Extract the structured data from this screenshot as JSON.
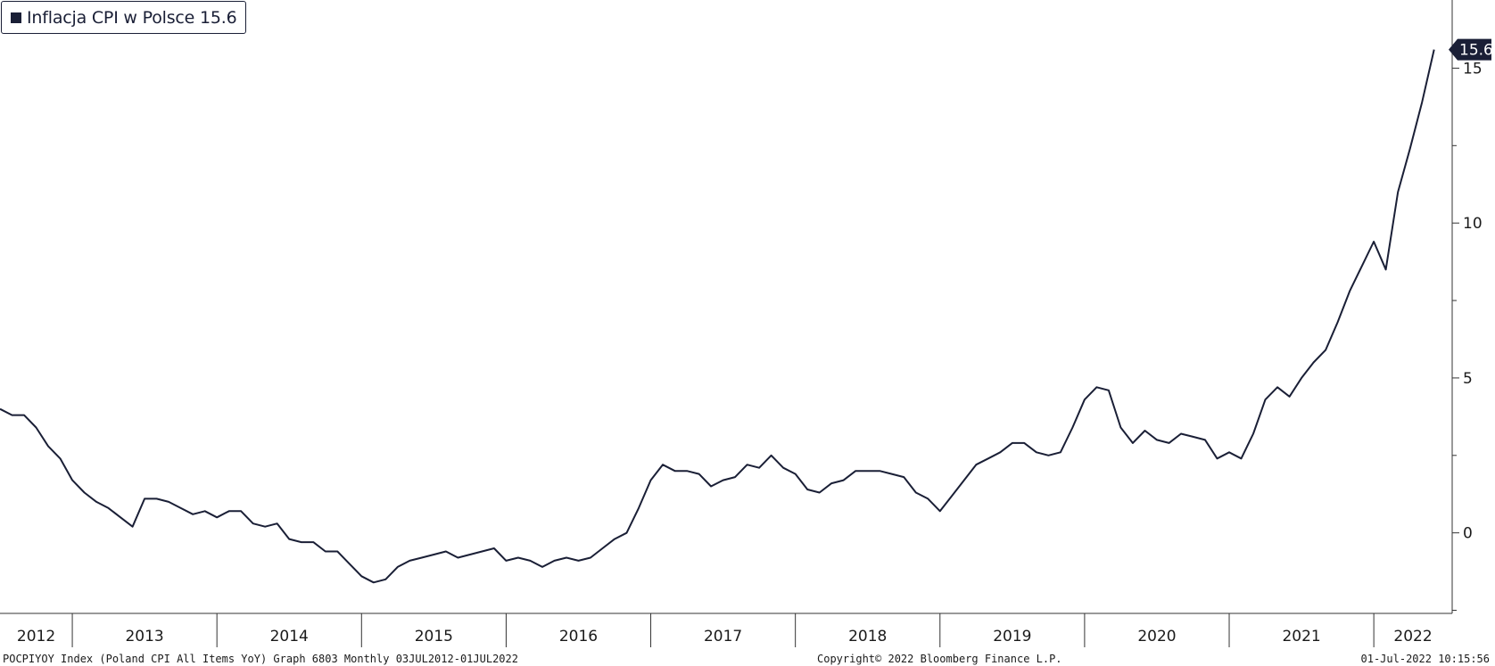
{
  "legend": {
    "label": "Inflacja CPI w Polsce 15.6"
  },
  "last_value_label": "15.6",
  "footer": {
    "left": "POCPIYOY Index (Poland CPI All Items YoY) Graph 6803  Monthly 03JUL2012-01JUL2022",
    "center": "Copyright© 2022 Bloomberg Finance L.P.",
    "right": "01-Jul-2022 10:15:56"
  },
  "colors": {
    "line": "#1a1f36",
    "axis": "#333333",
    "badge": "#1a1f36"
  },
  "chart_data": {
    "type": "line",
    "title": "",
    "xlabel": "",
    "ylabel": "",
    "ylim": [
      -2.6,
      17.2
    ],
    "y_ticks": [
      0,
      5,
      10,
      15
    ],
    "x_start": "2012-07",
    "x_end": "2022-07",
    "year_labels": [
      "2012",
      "2013",
      "2014",
      "2015",
      "2016",
      "2017",
      "2018",
      "2019",
      "2020",
      "2021",
      "2022"
    ],
    "series": [
      {
        "name": "Inflacja CPI w Polsce",
        "x": [
          "2012-07",
          "2012-08",
          "2012-09",
          "2012-10",
          "2012-11",
          "2012-12",
          "2013-01",
          "2013-02",
          "2013-03",
          "2013-04",
          "2013-05",
          "2013-06",
          "2013-07",
          "2013-08",
          "2013-09",
          "2013-10",
          "2013-11",
          "2013-12",
          "2014-01",
          "2014-02",
          "2014-03",
          "2014-04",
          "2014-05",
          "2014-06",
          "2014-07",
          "2014-08",
          "2014-09",
          "2014-10",
          "2014-11",
          "2014-12",
          "2015-01",
          "2015-02",
          "2015-03",
          "2015-04",
          "2015-05",
          "2015-06",
          "2015-07",
          "2015-08",
          "2015-09",
          "2015-10",
          "2015-11",
          "2015-12",
          "2016-01",
          "2016-02",
          "2016-03",
          "2016-04",
          "2016-05",
          "2016-06",
          "2016-07",
          "2016-08",
          "2016-09",
          "2016-10",
          "2016-11",
          "2016-12",
          "2017-01",
          "2017-02",
          "2017-03",
          "2017-04",
          "2017-05",
          "2017-06",
          "2017-07",
          "2017-08",
          "2017-09",
          "2017-10",
          "2017-11",
          "2017-12",
          "2018-01",
          "2018-02",
          "2018-03",
          "2018-04",
          "2018-05",
          "2018-06",
          "2018-07",
          "2018-08",
          "2018-09",
          "2018-10",
          "2018-11",
          "2018-12",
          "2019-01",
          "2019-02",
          "2019-03",
          "2019-04",
          "2019-05",
          "2019-06",
          "2019-07",
          "2019-08",
          "2019-09",
          "2019-10",
          "2019-11",
          "2019-12",
          "2020-01",
          "2020-02",
          "2020-03",
          "2020-04",
          "2020-05",
          "2020-06",
          "2020-07",
          "2020-08",
          "2020-09",
          "2020-10",
          "2020-11",
          "2020-12",
          "2021-01",
          "2021-02",
          "2021-03",
          "2021-04",
          "2021-05",
          "2021-06",
          "2021-07",
          "2021-08",
          "2021-09",
          "2021-10",
          "2021-11",
          "2021-12",
          "2022-01",
          "2022-02",
          "2022-03",
          "2022-04",
          "2022-05",
          "2022-06"
        ],
        "y": [
          4.0,
          3.8,
          3.8,
          3.4,
          2.8,
          2.4,
          1.7,
          1.3,
          1.0,
          0.8,
          0.5,
          0.2,
          1.1,
          1.1,
          1.0,
          0.8,
          0.6,
          0.7,
          0.5,
          0.7,
          0.7,
          0.3,
          0.2,
          0.3,
          -0.2,
          -0.3,
          -0.3,
          -0.6,
          -0.6,
          -1.0,
          -1.4,
          -1.6,
          -1.5,
          -1.1,
          -0.9,
          -0.8,
          -0.7,
          -0.6,
          -0.8,
          -0.7,
          -0.6,
          -0.5,
          -0.9,
          -0.8,
          -0.9,
          -1.1,
          -0.9,
          -0.8,
          -0.9,
          -0.8,
          -0.5,
          -0.2,
          0.0,
          0.8,
          1.7,
          2.2,
          2.0,
          2.0,
          1.9,
          1.5,
          1.7,
          1.8,
          2.2,
          2.1,
          2.5,
          2.1,
          1.9,
          1.4,
          1.3,
          1.6,
          1.7,
          2.0,
          2.0,
          2.0,
          1.9,
          1.8,
          1.3,
          1.1,
          0.7,
          1.2,
          1.7,
          2.2,
          2.4,
          2.6,
          2.9,
          2.9,
          2.6,
          2.5,
          2.6,
          3.4,
          4.3,
          4.7,
          4.6,
          3.4,
          2.9,
          3.3,
          3.0,
          2.9,
          3.2,
          3.1,
          3.0,
          2.4,
          2.6,
          2.4,
          3.2,
          4.3,
          4.7,
          4.4,
          5.0,
          5.5,
          5.9,
          6.8,
          7.8,
          8.6,
          9.4,
          8.5,
          11.0,
          12.4,
          13.9,
          15.6
        ]
      }
    ]
  }
}
